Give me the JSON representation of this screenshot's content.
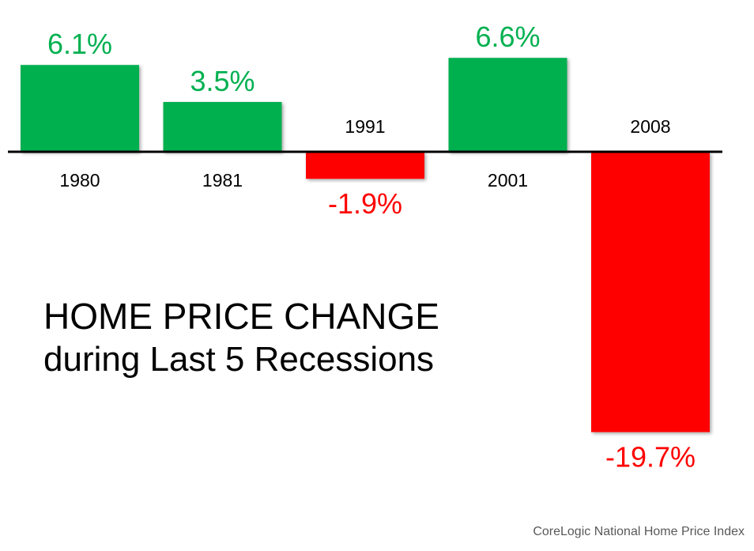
{
  "chart_data": {
    "type": "bar",
    "title_line1": "HOME PRICE CHANGE",
    "title_line2": "during Last 5 Recessions",
    "source": "CoreLogic National Home Price Index",
    "categories": [
      "1980",
      "1981",
      "1991",
      "2001",
      "2008"
    ],
    "values": [
      6.1,
      3.5,
      -1.9,
      6.6,
      -19.7
    ],
    "value_labels": [
      "6.1%",
      "3.5%",
      "-1.9%",
      "6.6%",
      "-19.7%"
    ],
    "unit": "%",
    "ylim": [
      -19.7,
      6.6
    ],
    "grid": false,
    "legend": "none",
    "colors": {
      "positive": "#00b050",
      "negative": "#ff0000",
      "axis": "#000000",
      "category_text": "#000000"
    }
  }
}
